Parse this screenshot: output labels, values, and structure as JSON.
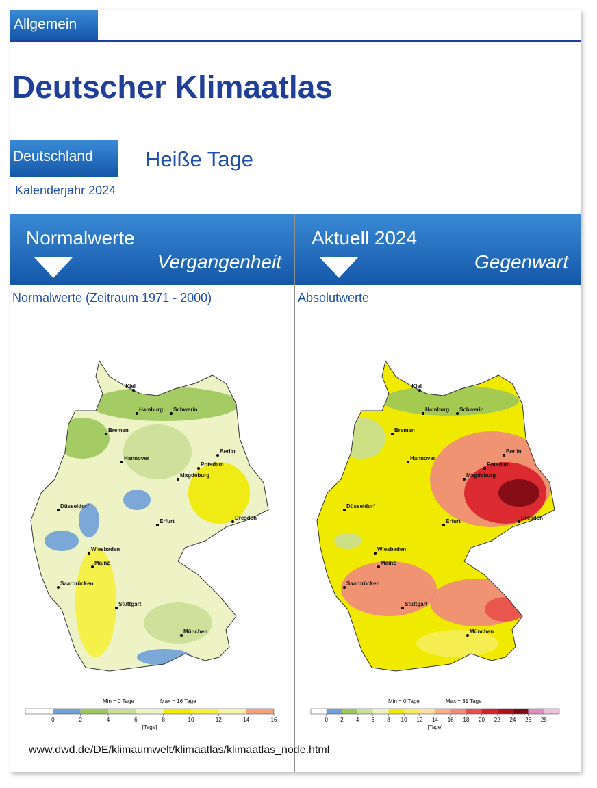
{
  "header": {
    "tab": "Allgemein",
    "title": "Deutscher Klimaatlas",
    "region": "Deutschland",
    "topic": "Heiße Tage",
    "period": "Kalenderjahr 2024"
  },
  "panels": [
    {
      "heading": "Normalwerte",
      "subheading": "Vergangenheit",
      "caption": "Normalwerte (Zeitraum 1971 - 2000)",
      "map": {
        "cities": [
          "Kiel",
          "Hamburg",
          "Schwerin",
          "Bremen",
          "Hannover",
          "Berlin",
          "Potsdam",
          "Magdeburg",
          "Düsseldorf",
          "Erfurt",
          "Dresden",
          "Wiesbaden",
          "Mainz",
          "Saarbrücken",
          "Stuttgart",
          "München"
        ],
        "legend": {
          "min_label": "Min = 0 Tage",
          "max_label": "Max = 16 Tage",
          "unit": "[Tage]",
          "ticks": [
            0,
            2,
            4,
            6,
            8,
            10,
            12,
            14,
            16
          ],
          "colors": [
            "#ffffff",
            "#6fa0d8",
            "#9cc65a",
            "#c9df95",
            "#eef3c6",
            "#f0ea00",
            "#f5f03c",
            "#f7f3a8",
            "#f3a07a"
          ]
        }
      }
    },
    {
      "heading": "Aktuell 2024",
      "subheading": "Gegenwart",
      "caption": "Absolutwerte",
      "map": {
        "cities": [
          "Kiel",
          "Hamburg",
          "Schwerin",
          "Bremen",
          "Hannover",
          "Berlin",
          "Potsdam",
          "Magdeburg",
          "Düsseldorf",
          "Erfurt",
          "Dresden",
          "Wiesbaden",
          "Mainz",
          "Saarbrücken",
          "Stuttgart",
          "München"
        ],
        "legend": {
          "min_label": "Min = 0 Tage",
          "max_label": "Max = 31 Tage",
          "unit": "[Tage]",
          "ticks": [
            0,
            2,
            4,
            6,
            8,
            10,
            12,
            14,
            16,
            18,
            20,
            22,
            24,
            26,
            28
          ],
          "colors": [
            "#ffffff",
            "#6fa0d8",
            "#9cc65a",
            "#c9df95",
            "#eef3c6",
            "#f0ea00",
            "#f6ed5a",
            "#fbe0a0",
            "#f6b08a",
            "#f08a80",
            "#e8504a",
            "#d8202a",
            "#b0101a",
            "#7a0a14",
            "#d890c0",
            "#f0c0e0"
          ]
        }
      }
    }
  ],
  "footer": {
    "url": "www.dwd.de/DE/klimaumwelt/klimaatlas/klimaatlas_node.html"
  }
}
